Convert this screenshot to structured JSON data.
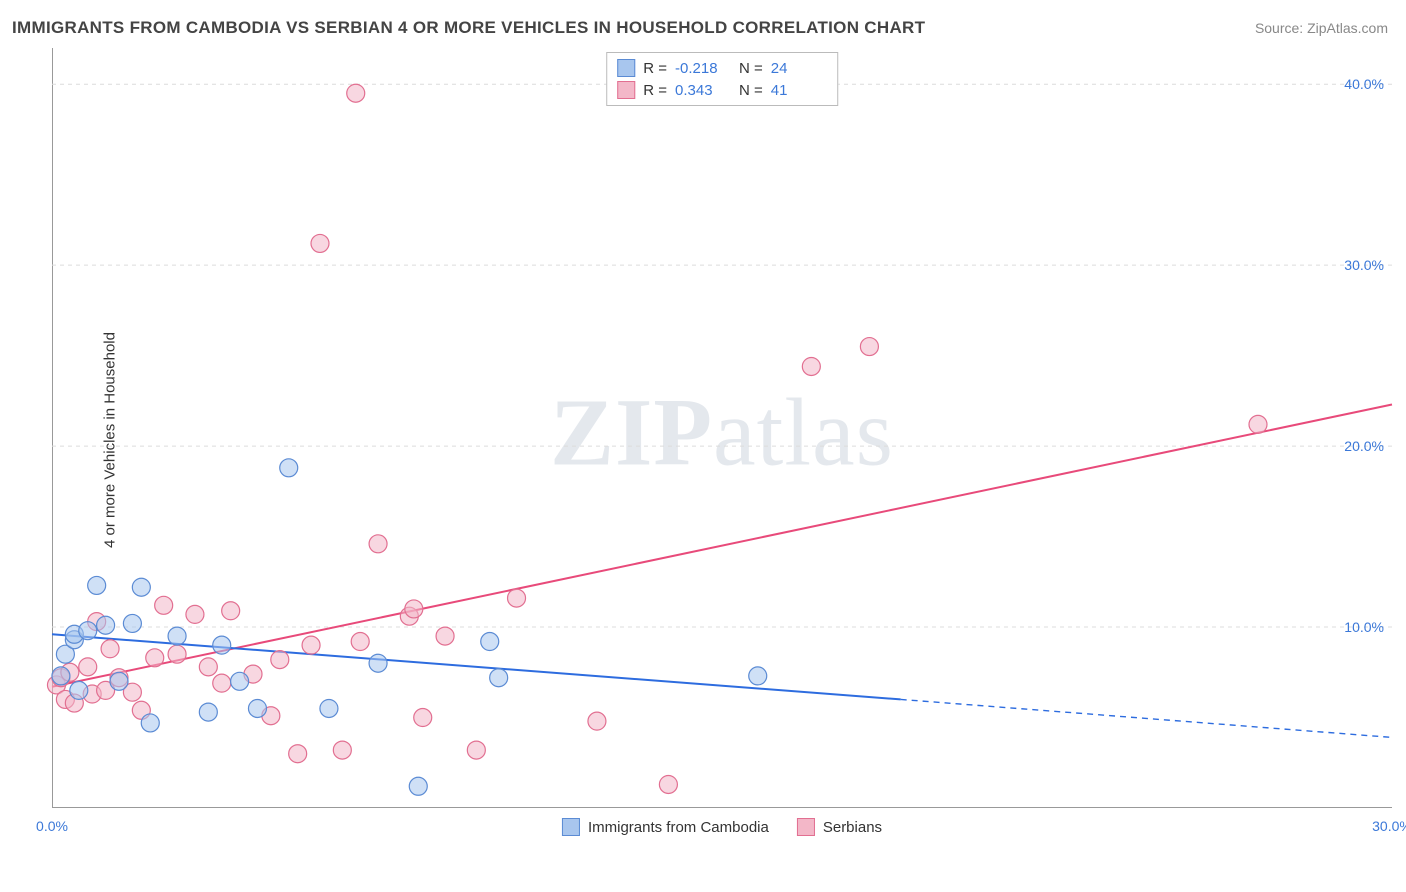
{
  "title": "IMMIGRANTS FROM CAMBODIA VS SERBIAN 4 OR MORE VEHICLES IN HOUSEHOLD CORRELATION CHART",
  "source": "Source: ZipAtlas.com",
  "watermark_a": "ZIP",
  "watermark_b": "atlas",
  "y_axis_title": "4 or more Vehicles in Household",
  "chart": {
    "type": "scatter",
    "xlim": [
      0,
      30
    ],
    "ylim": [
      0,
      42
    ],
    "y_gridlines": [
      10,
      20,
      30,
      40
    ],
    "y_tick_labels": [
      "10.0%",
      "20.0%",
      "30.0%",
      "40.0%"
    ],
    "y_tick_positions": [
      10,
      20,
      30,
      40
    ],
    "x_tick_labels": [
      "0.0%",
      "30.0%"
    ],
    "x_tick_positions": [
      0,
      30
    ],
    "background_color": "#ffffff",
    "grid_color": "#dcdcdc",
    "axis_color": "#999999",
    "tick_label_color": "#3b78d8",
    "tick_fontsize": 14,
    "label_fontsize": 15,
    "title_fontsize": 17,
    "title_color": "#444444",
    "point_radius": 9,
    "point_opacity": 0.55,
    "line_width": 2,
    "series": {
      "cambodia": {
        "label": "Immigrants from Cambodia",
        "fill_color": "#a8c6ee",
        "stroke_color": "#5b8bd4",
        "line_color": "#2d6cdf",
        "R": "-0.218",
        "N": "24",
        "points": [
          [
            0.2,
            7.3
          ],
          [
            0.3,
            8.5
          ],
          [
            0.5,
            9.3
          ],
          [
            0.5,
            9.6
          ],
          [
            0.8,
            9.8
          ],
          [
            1.0,
            12.3
          ],
          [
            1.2,
            10.1
          ],
          [
            1.5,
            7.0
          ],
          [
            2.0,
            12.2
          ],
          [
            2.2,
            4.7
          ],
          [
            2.8,
            9.5
          ],
          [
            3.5,
            5.3
          ],
          [
            3.8,
            9.0
          ],
          [
            4.2,
            7.0
          ],
          [
            4.6,
            5.5
          ],
          [
            5.3,
            18.8
          ],
          [
            6.2,
            5.5
          ],
          [
            7.3,
            8.0
          ],
          [
            8.2,
            1.2
          ],
          [
            9.8,
            9.2
          ],
          [
            10.0,
            7.2
          ],
          [
            0.6,
            6.5
          ],
          [
            1.8,
            10.2
          ],
          [
            15.8,
            7.3
          ]
        ],
        "trend": {
          "x1": 0,
          "y1": 9.6,
          "x2": 19,
          "y2": 6.0,
          "dash_x2": 30,
          "dash_y2": 3.9
        }
      },
      "serbians": {
        "label": "Serbians",
        "fill_color": "#f3b7c8",
        "stroke_color": "#e26f91",
        "line_color": "#e84a7a",
        "R": "0.343",
        "N": "41",
        "points": [
          [
            0.1,
            6.8
          ],
          [
            0.2,
            7.2
          ],
          [
            0.3,
            6.0
          ],
          [
            0.4,
            7.5
          ],
          [
            0.5,
            5.8
          ],
          [
            0.8,
            7.8
          ],
          [
            0.9,
            6.3
          ],
          [
            1.2,
            6.5
          ],
          [
            1.3,
            8.8
          ],
          [
            1.5,
            7.2
          ],
          [
            1.8,
            6.4
          ],
          [
            2.0,
            5.4
          ],
          [
            2.3,
            8.3
          ],
          [
            2.5,
            11.2
          ],
          [
            2.8,
            8.5
          ],
          [
            3.2,
            10.7
          ],
          [
            3.5,
            7.8
          ],
          [
            3.8,
            6.9
          ],
          [
            4.0,
            10.9
          ],
          [
            4.5,
            7.4
          ],
          [
            4.9,
            5.1
          ],
          [
            5.1,
            8.2
          ],
          [
            5.5,
            3.0
          ],
          [
            5.8,
            9.0
          ],
          [
            6.0,
            31.2
          ],
          [
            6.5,
            3.2
          ],
          [
            6.8,
            39.5
          ],
          [
            6.9,
            9.2
          ],
          [
            7.3,
            14.6
          ],
          [
            8.0,
            10.6
          ],
          [
            8.1,
            11.0
          ],
          [
            8.3,
            5.0
          ],
          [
            8.8,
            9.5
          ],
          [
            9.5,
            3.2
          ],
          [
            10.4,
            11.6
          ],
          [
            12.2,
            4.8
          ],
          [
            13.8,
            1.3
          ],
          [
            17.0,
            24.4
          ],
          [
            18.3,
            25.5
          ],
          [
            27.0,
            21.2
          ],
          [
            1.0,
            10.3
          ]
        ],
        "trend": {
          "x1": 0,
          "y1": 6.7,
          "x2": 30,
          "y2": 22.3
        }
      }
    }
  },
  "stats_legend": {
    "r_label": "R =",
    "n_label": "N ="
  }
}
